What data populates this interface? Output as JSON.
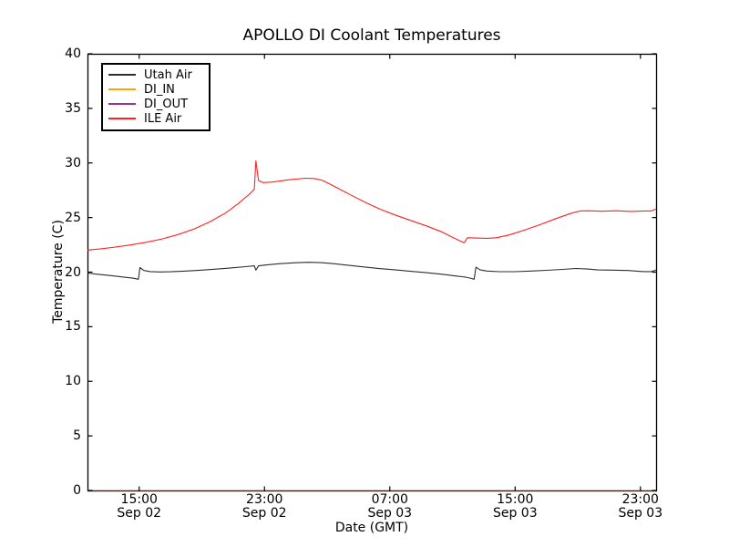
{
  "chart_data": {
    "type": "line",
    "title": "APOLLO DI Coolant Temperatures",
    "xlabel": "Date (GMT)",
    "ylabel": "Temperature (C)",
    "ylim": [
      0,
      40
    ],
    "xlim": [
      11.7,
      48.0
    ],
    "x_unit": "hours since Sep 02 00:00 GMT",
    "grid": false,
    "legend_position": "upper left",
    "frame_color": "#000000",
    "yticks": [
      {
        "value": 0,
        "label": "0"
      },
      {
        "value": 5,
        "label": "5"
      },
      {
        "value": 10,
        "label": "10"
      },
      {
        "value": 15,
        "label": "15"
      },
      {
        "value": 20,
        "label": "20"
      },
      {
        "value": 25,
        "label": "25"
      },
      {
        "value": 30,
        "label": "30"
      },
      {
        "value": 35,
        "label": "35"
      },
      {
        "value": 40,
        "label": "40"
      }
    ],
    "xticks": [
      {
        "t": 15,
        "time": "15:00",
        "date": "Sep 02"
      },
      {
        "t": 23,
        "time": "23:00",
        "date": "Sep 02"
      },
      {
        "t": 31,
        "time": "07:00",
        "date": "Sep 03"
      },
      {
        "t": 39,
        "time": "15:00",
        "date": "Sep 03"
      },
      {
        "t": 47,
        "time": "23:00",
        "date": "Sep 03"
      }
    ],
    "series": [
      {
        "name": "Utah Air",
        "color": "#2e2e2e",
        "points": [
          [
            11.7,
            19.92
          ],
          [
            12.4,
            19.8
          ],
          [
            13.2,
            19.68
          ],
          [
            14.0,
            19.55
          ],
          [
            14.6,
            19.45
          ],
          [
            14.95,
            19.35
          ],
          [
            15.05,
            20.42
          ],
          [
            15.3,
            20.15
          ],
          [
            15.7,
            20.05
          ],
          [
            16.3,
            20.02
          ],
          [
            17.0,
            20.03
          ],
          [
            18.0,
            20.1
          ],
          [
            19.0,
            20.18
          ],
          [
            20.0,
            20.28
          ],
          [
            21.0,
            20.4
          ],
          [
            21.8,
            20.5
          ],
          [
            22.35,
            20.58
          ],
          [
            22.45,
            20.18
          ],
          [
            22.62,
            20.58
          ],
          [
            23.2,
            20.68
          ],
          [
            24.0,
            20.78
          ],
          [
            25.0,
            20.86
          ],
          [
            25.8,
            20.9
          ],
          [
            26.6,
            20.87
          ],
          [
            27.4,
            20.78
          ],
          [
            28.4,
            20.62
          ],
          [
            29.4,
            20.47
          ],
          [
            30.4,
            20.32
          ],
          [
            31.4,
            20.2
          ],
          [
            32.4,
            20.07
          ],
          [
            33.4,
            19.94
          ],
          [
            34.4,
            19.8
          ],
          [
            35.2,
            19.65
          ],
          [
            35.8,
            19.55
          ],
          [
            36.2,
            19.42
          ],
          [
            36.38,
            19.35
          ],
          [
            36.5,
            20.45
          ],
          [
            36.75,
            20.22
          ],
          [
            37.2,
            20.1
          ],
          [
            38.0,
            20.04
          ],
          [
            39.0,
            20.04
          ],
          [
            40.0,
            20.1
          ],
          [
            41.0,
            20.17
          ],
          [
            42.0,
            20.25
          ],
          [
            42.9,
            20.33
          ],
          [
            43.6,
            20.28
          ],
          [
            44.3,
            20.2
          ],
          [
            45.2,
            20.18
          ],
          [
            46.2,
            20.15
          ],
          [
            47.2,
            20.05
          ],
          [
            47.7,
            20.05
          ],
          [
            47.98,
            20.18
          ]
        ]
      },
      {
        "name": "DI_IN",
        "color": "#ffa500",
        "points": [
          [
            11.7,
            0
          ],
          [
            47.98,
            0
          ]
        ]
      },
      {
        "name": "DI_OUT",
        "color": "#993399",
        "points": [
          [
            11.7,
            0
          ],
          [
            47.98,
            0
          ]
        ]
      },
      {
        "name": "ILE Air",
        "color": "#ff2020",
        "points": [
          [
            11.7,
            22.02
          ],
          [
            12.5,
            22.12
          ],
          [
            13.5,
            22.3
          ],
          [
            14.5,
            22.5
          ],
          [
            15.5,
            22.75
          ],
          [
            16.5,
            23.05
          ],
          [
            17.5,
            23.45
          ],
          [
            18.5,
            23.95
          ],
          [
            19.5,
            24.6
          ],
          [
            20.5,
            25.4
          ],
          [
            21.3,
            26.25
          ],
          [
            22.0,
            27.1
          ],
          [
            22.35,
            27.6
          ],
          [
            22.45,
            30.2
          ],
          [
            22.62,
            28.4
          ],
          [
            22.9,
            28.2
          ],
          [
            23.5,
            28.25
          ],
          [
            24.5,
            28.45
          ],
          [
            25.6,
            28.6
          ],
          [
            26.2,
            28.58
          ],
          [
            26.7,
            28.4
          ],
          [
            27.2,
            28.05
          ],
          [
            27.8,
            27.6
          ],
          [
            28.6,
            27.0
          ],
          [
            29.5,
            26.35
          ],
          [
            30.4,
            25.75
          ],
          [
            31.4,
            25.2
          ],
          [
            32.4,
            24.7
          ],
          [
            33.4,
            24.2
          ],
          [
            34.3,
            23.7
          ],
          [
            35.0,
            23.2
          ],
          [
            35.5,
            22.85
          ],
          [
            35.75,
            22.7
          ],
          [
            35.95,
            23.15
          ],
          [
            36.5,
            23.12
          ],
          [
            37.2,
            23.1
          ],
          [
            37.8,
            23.15
          ],
          [
            38.6,
            23.4
          ],
          [
            39.6,
            23.85
          ],
          [
            40.6,
            24.35
          ],
          [
            41.6,
            24.9
          ],
          [
            42.6,
            25.4
          ],
          [
            43.15,
            25.6
          ],
          [
            43.7,
            25.62
          ],
          [
            44.5,
            25.58
          ],
          [
            45.5,
            25.62
          ],
          [
            46.4,
            25.56
          ],
          [
            47.2,
            25.6
          ],
          [
            47.7,
            25.6
          ],
          [
            47.98,
            25.78
          ]
        ]
      }
    ]
  }
}
